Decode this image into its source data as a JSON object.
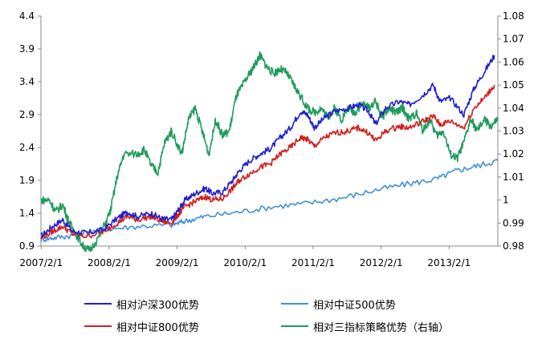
{
  "chart_data": {
    "type": "line",
    "title": "",
    "xlabel": "",
    "ylabel": "",
    "x_ticks": [
      "2007/2/1",
      "2008/2/1",
      "2009/2/1",
      "2010/2/1",
      "2011/2/1",
      "2012/2/1",
      "2013/2/1"
    ],
    "y_left": {
      "ticks": [
        "0.9",
        "1.4",
        "1.9",
        "2.4",
        "2.9",
        "3.4",
        "3.9",
        "4.4"
      ],
      "ylim": [
        0.9,
        4.4
      ]
    },
    "y_right": {
      "ticks": [
        "0.98",
        "0.99",
        "1",
        "1.01",
        "1.02",
        "1.03",
        "1.04",
        "1.05",
        "1.06",
        "1.07",
        "1.08"
      ],
      "ylim": [
        0.98,
        1.08
      ]
    },
    "grid": false,
    "legend_position": "bottom",
    "x_range": [
      2007.08,
      2013.8
    ],
    "series": [
      {
        "name": "相对沪深300优势",
        "axis": "left",
        "color": "#1f1fd0",
        "points": [
          [
            2007.08,
            1.05
          ],
          [
            2007.25,
            1.2
          ],
          [
            2007.4,
            1.3
          ],
          [
            2007.55,
            1.12
          ],
          [
            2007.75,
            1.1
          ],
          [
            2008.0,
            1.15
          ],
          [
            2008.2,
            1.32
          ],
          [
            2008.35,
            1.42
          ],
          [
            2008.5,
            1.35
          ],
          [
            2008.7,
            1.4
          ],
          [
            2008.85,
            1.32
          ],
          [
            2009.0,
            1.3
          ],
          [
            2009.1,
            1.45
          ],
          [
            2009.2,
            1.6
          ],
          [
            2009.35,
            1.7
          ],
          [
            2009.5,
            1.78
          ],
          [
            2009.6,
            1.7
          ],
          [
            2009.75,
            1.72
          ],
          [
            2009.9,
            1.9
          ],
          [
            2010.0,
            2.05
          ],
          [
            2010.15,
            2.2
          ],
          [
            2010.3,
            2.3
          ],
          [
            2010.45,
            2.38
          ],
          [
            2010.6,
            2.55
          ],
          [
            2010.75,
            2.7
          ],
          [
            2010.9,
            2.95
          ],
          [
            2011.0,
            2.9
          ],
          [
            2011.1,
            2.7
          ],
          [
            2011.25,
            2.85
          ],
          [
            2011.4,
            2.95
          ],
          [
            2011.6,
            3.0
          ],
          [
            2011.75,
            3.05
          ],
          [
            2011.9,
            2.95
          ],
          [
            2012.0,
            2.75
          ],
          [
            2012.15,
            3.0
          ],
          [
            2012.35,
            3.1
          ],
          [
            2012.5,
            3.05
          ],
          [
            2012.7,
            3.2
          ],
          [
            2012.85,
            3.35
          ],
          [
            2012.95,
            3.1
          ],
          [
            2013.1,
            3.15
          ],
          [
            2013.3,
            2.9
          ],
          [
            2013.45,
            3.3
          ],
          [
            2013.6,
            3.55
          ],
          [
            2013.75,
            3.8
          ]
        ]
      },
      {
        "name": "相对中证500优势",
        "axis": "left",
        "color": "#3f8fdc",
        "points": [
          [
            2007.08,
            1.0
          ],
          [
            2007.3,
            1.03
          ],
          [
            2007.6,
            1.07
          ],
          [
            2008.0,
            1.15
          ],
          [
            2008.5,
            1.2
          ],
          [
            2009.0,
            1.22
          ],
          [
            2009.2,
            1.28
          ],
          [
            2009.5,
            1.35
          ],
          [
            2010.0,
            1.42
          ],
          [
            2010.5,
            1.5
          ],
          [
            2011.0,
            1.55
          ],
          [
            2011.5,
            1.63
          ],
          [
            2012.0,
            1.75
          ],
          [
            2012.5,
            1.85
          ],
          [
            2012.9,
            1.92
          ],
          [
            2013.2,
            2.05
          ],
          [
            2013.5,
            2.12
          ],
          [
            2013.8,
            2.2
          ]
        ]
      },
      {
        "name": "相对中证800优势",
        "axis": "left",
        "color": "#d01f1f",
        "points": [
          [
            2007.08,
            1.02
          ],
          [
            2007.25,
            1.12
          ],
          [
            2007.4,
            1.2
          ],
          [
            2007.55,
            1.08
          ],
          [
            2007.75,
            1.05
          ],
          [
            2008.0,
            1.12
          ],
          [
            2008.2,
            1.25
          ],
          [
            2008.35,
            1.35
          ],
          [
            2008.5,
            1.3
          ],
          [
            2008.7,
            1.35
          ],
          [
            2008.85,
            1.28
          ],
          [
            2009.0,
            1.25
          ],
          [
            2009.1,
            1.38
          ],
          [
            2009.2,
            1.5
          ],
          [
            2009.35,
            1.58
          ],
          [
            2009.5,
            1.65
          ],
          [
            2009.6,
            1.6
          ],
          [
            2009.75,
            1.62
          ],
          [
            2009.9,
            1.78
          ],
          [
            2010.0,
            1.9
          ],
          [
            2010.15,
            2.0
          ],
          [
            2010.3,
            2.1
          ],
          [
            2010.45,
            2.15
          ],
          [
            2010.6,
            2.3
          ],
          [
            2010.75,
            2.4
          ],
          [
            2010.9,
            2.55
          ],
          [
            2011.0,
            2.52
          ],
          [
            2011.1,
            2.42
          ],
          [
            2011.25,
            2.55
          ],
          [
            2011.4,
            2.62
          ],
          [
            2011.6,
            2.65
          ],
          [
            2011.75,
            2.7
          ],
          [
            2011.9,
            2.62
          ],
          [
            2012.0,
            2.5
          ],
          [
            2012.15,
            2.65
          ],
          [
            2012.35,
            2.72
          ],
          [
            2012.5,
            2.7
          ],
          [
            2012.7,
            2.8
          ],
          [
            2012.85,
            2.88
          ],
          [
            2012.95,
            2.75
          ],
          [
            2013.1,
            2.8
          ],
          [
            2013.3,
            2.7
          ],
          [
            2013.45,
            3.0
          ],
          [
            2013.6,
            3.15
          ],
          [
            2013.75,
            3.35
          ]
        ]
      },
      {
        "name": "相对三指标策略优势（右轴）",
        "axis": "right",
        "color": "#1f9b5a",
        "points": [
          [
            2007.08,
            1.0
          ],
          [
            2007.2,
            1.0
          ],
          [
            2007.3,
            0.995
          ],
          [
            2007.4,
            0.998
          ],
          [
            2007.5,
            0.99
          ],
          [
            2007.6,
            0.985
          ],
          [
            2007.7,
            0.98
          ],
          [
            2007.8,
            0.978
          ],
          [
            2007.95,
            0.985
          ],
          [
            2008.1,
            0.995
          ],
          [
            2008.2,
            1.01
          ],
          [
            2008.3,
            1.02
          ],
          [
            2008.5,
            1.02
          ],
          [
            2008.6,
            1.022
          ],
          [
            2008.7,
            1.015
          ],
          [
            2008.8,
            1.012
          ],
          [
            2008.9,
            1.025
          ],
          [
            2009.0,
            1.03
          ],
          [
            2009.15,
            1.02
          ],
          [
            2009.25,
            1.035
          ],
          [
            2009.35,
            1.04
          ],
          [
            2009.45,
            1.03
          ],
          [
            2009.55,
            1.02
          ],
          [
            2009.65,
            1.035
          ],
          [
            2009.75,
            1.028
          ],
          [
            2009.85,
            1.03
          ],
          [
            2009.95,
            1.045
          ],
          [
            2010.05,
            1.05
          ],
          [
            2010.15,
            1.055
          ],
          [
            2010.25,
            1.06
          ],
          [
            2010.3,
            1.063
          ],
          [
            2010.4,
            1.058
          ],
          [
            2010.5,
            1.055
          ],
          [
            2010.6,
            1.057
          ],
          [
            2010.7,
            1.055
          ],
          [
            2010.8,
            1.05
          ],
          [
            2010.9,
            1.045
          ],
          [
            2011.0,
            1.04
          ],
          [
            2011.1,
            1.038
          ],
          [
            2011.2,
            1.04
          ],
          [
            2011.3,
            1.036
          ],
          [
            2011.4,
            1.04
          ],
          [
            2011.5,
            1.035
          ],
          [
            2011.6,
            1.04
          ],
          [
            2011.7,
            1.038
          ],
          [
            2011.8,
            1.042
          ],
          [
            2011.9,
            1.04
          ],
          [
            2012.0,
            1.043
          ],
          [
            2012.1,
            1.036
          ],
          [
            2012.2,
            1.04
          ],
          [
            2012.3,
            1.038
          ],
          [
            2012.4,
            1.04
          ],
          [
            2012.5,
            1.035
          ],
          [
            2012.6,
            1.038
          ],
          [
            2012.7,
            1.03
          ],
          [
            2012.8,
            1.035
          ],
          [
            2012.9,
            1.028
          ],
          [
            2013.0,
            1.03
          ],
          [
            2013.1,
            1.02
          ],
          [
            2013.2,
            1.018
          ],
          [
            2013.3,
            1.025
          ],
          [
            2013.4,
            1.035
          ],
          [
            2013.5,
            1.03
          ],
          [
            2013.6,
            1.035
          ],
          [
            2013.7,
            1.032
          ],
          [
            2013.8,
            1.035
          ]
        ]
      }
    ]
  }
}
